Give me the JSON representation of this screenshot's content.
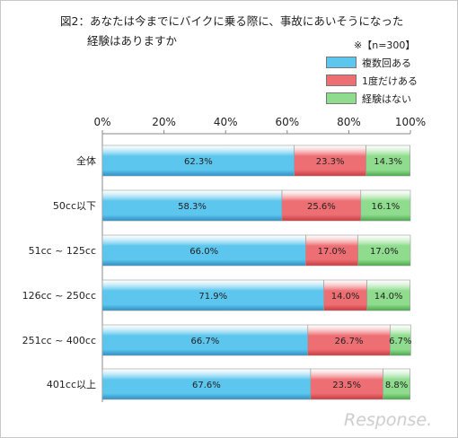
{
  "title_line1": "図2：あなたは今までにバイクに乗る際に、事故にあいそうになった",
  "title_line2": "経験はありますか",
  "sample_note": "※【n=300】",
  "watermark": "Response.",
  "colors": {
    "frequent": "#5cc6ee",
    "once": "#ee6f73",
    "never": "#8fdc8e"
  },
  "legend": [
    {
      "label": "複数回ある",
      "color": "#5cc6ee"
    },
    {
      "label": "1度だけある",
      "color": "#ee6f73"
    },
    {
      "label": "経験はない",
      "color": "#8fdc8e"
    }
  ],
  "chart_data": {
    "type": "bar",
    "orientation": "horizontal",
    "stacked": true,
    "percent_stacked": true,
    "title": "図2：あなたは今までにバイクに乗る際に、事故にあいそうになった経験はありますか",
    "xlim": [
      0,
      100
    ],
    "x_ticks": [
      "0%",
      "20%",
      "40%",
      "60%",
      "80%",
      "100%"
    ],
    "tick_values": [
      0,
      20,
      40,
      60,
      80,
      100
    ],
    "categories": [
      "全体",
      "50cc以下",
      "51cc ~ 125cc",
      "126cc ~ 250cc",
      "251cc ~ 400cc",
      "401cc以上"
    ],
    "series": [
      {
        "name": "複数回ある",
        "values": [
          62.3,
          58.3,
          66.0,
          71.9,
          66.7,
          67.6
        ],
        "labels": [
          "62.3%",
          "58.3%",
          "66.0%",
          "71.9%",
          "66.7%",
          "67.6%"
        ]
      },
      {
        "name": "1度だけある",
        "values": [
          23.3,
          25.6,
          17.0,
          14.0,
          26.7,
          23.5
        ],
        "labels": [
          "23.3%",
          "25.6%",
          "17.0%",
          "14.0%",
          "26.7%",
          "23.5%"
        ]
      },
      {
        "name": "経験はない",
        "values": [
          14.3,
          16.1,
          17.0,
          14.0,
          6.7,
          8.8
        ],
        "labels": [
          "14.3%",
          "16.1%",
          "17.0%",
          "14.0%",
          "6.7%",
          "8.8%"
        ]
      }
    ],
    "legend_position": "top-right",
    "grid": false
  }
}
